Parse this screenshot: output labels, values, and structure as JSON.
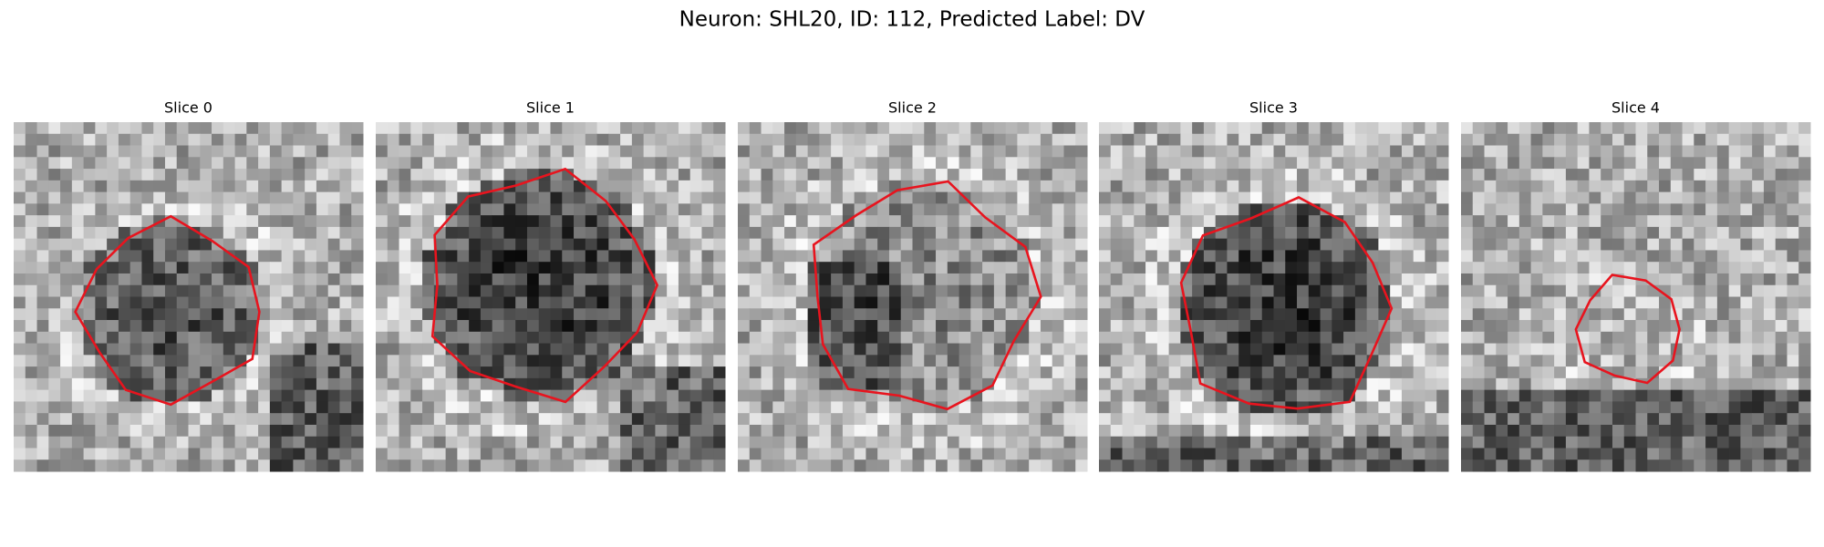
{
  "title": "Neuron: SHL20, ID: 112, Predicted Label: DV",
  "panels": [
    {
      "title": "Slice 0"
    },
    {
      "title": "Slice 1"
    },
    {
      "title": "Slice 2"
    },
    {
      "title": "Slice 3"
    },
    {
      "title": "Slice 4"
    }
  ]
}
